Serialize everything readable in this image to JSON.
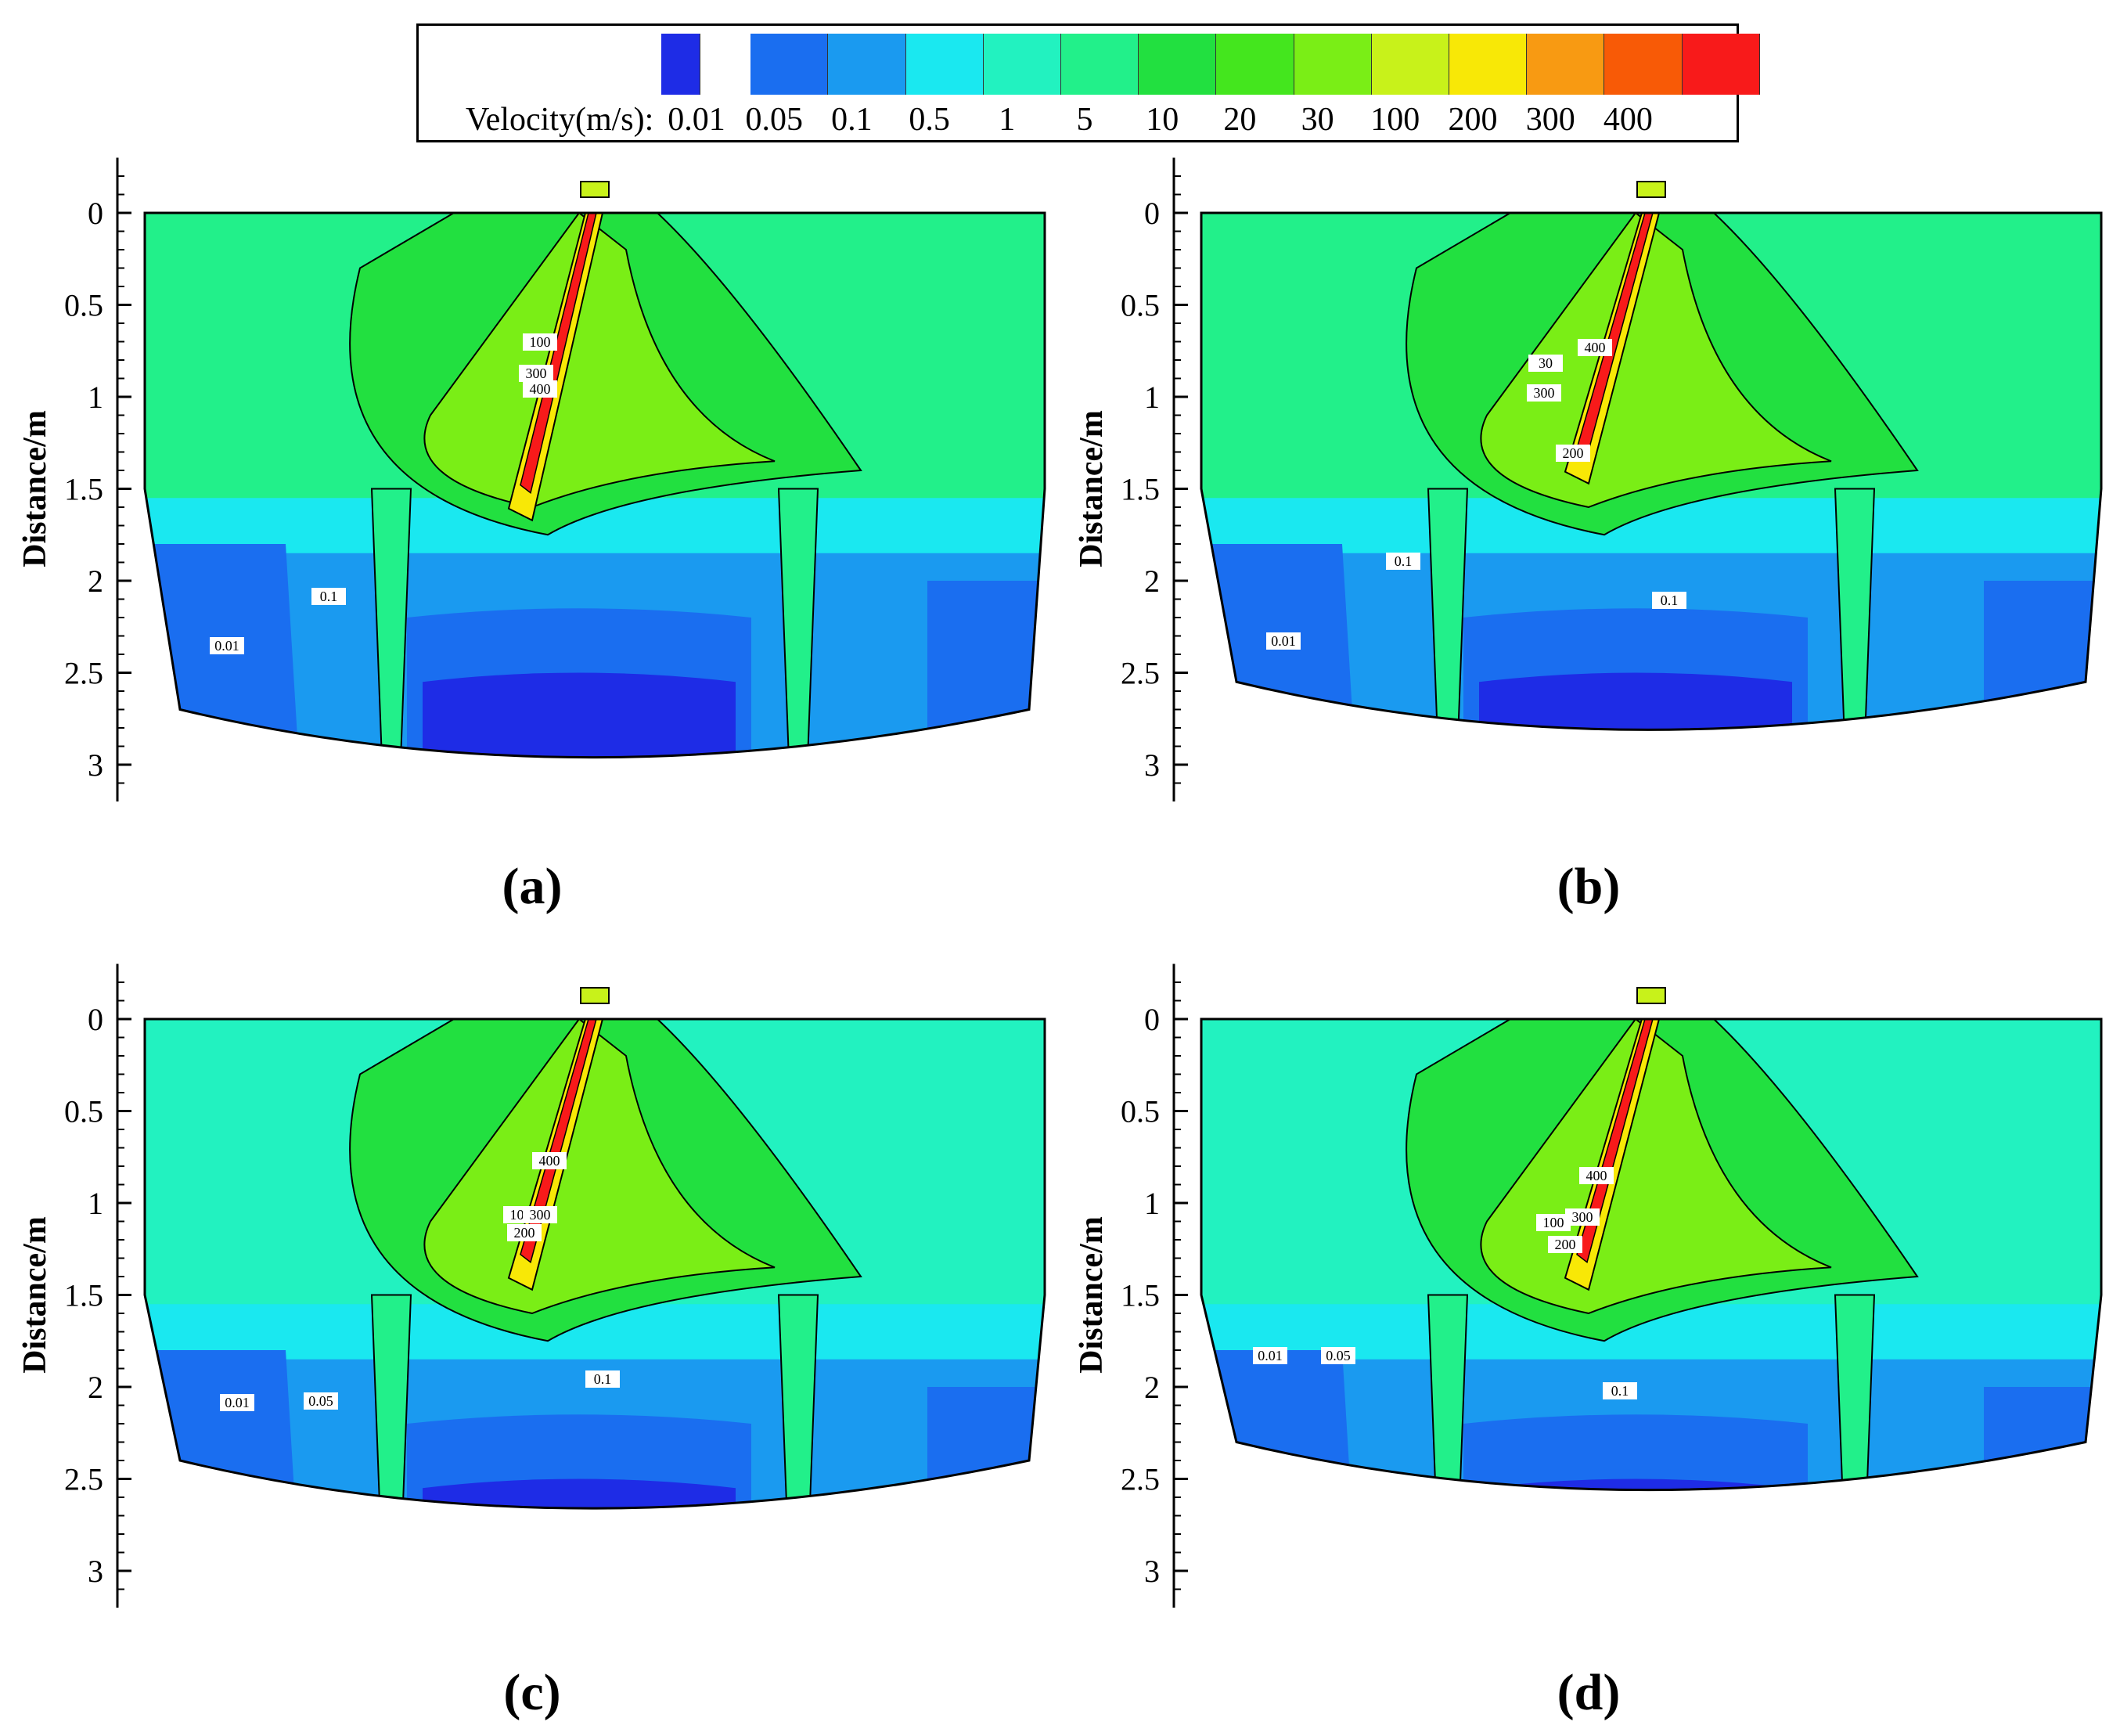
{
  "legend": {
    "title": "Velocity(m/s):",
    "levels": [
      "0.01",
      "0.05",
      "0.1",
      "0.5",
      "1",
      "5",
      "10",
      "20",
      "30",
      "100",
      "200",
      "300",
      "400"
    ],
    "colors": [
      "#1e2ce6",
      "#1a6ef0",
      "#1a9af0",
      "#1ae8f0",
      "#22f2c0",
      "#22f08a",
      "#22e040",
      "#44e61e",
      "#7aee16",
      "#c8f21a",
      "#f8e806",
      "#f89a12",
      "#f85a06",
      "#f81a1a"
    ]
  },
  "chart_data": [
    {
      "type": "heatmap",
      "panel": "(a)",
      "ylabel": "Distance/m",
      "yticks": [
        "0",
        "0.5",
        "1",
        "1.5",
        "2",
        "2.5",
        "3"
      ],
      "ylim": [
        0,
        3.2
      ],
      "contour_labels": [
        "100",
        "300",
        "400",
        "0.1",
        "0.01"
      ],
      "bottom_depth": 3.05
    },
    {
      "type": "heatmap",
      "panel": "(b)",
      "ylabel": "Distance/m",
      "yticks": [
        "0",
        "0.5",
        "1",
        "1.5",
        "2",
        "2.5",
        "3"
      ],
      "ylim": [
        0,
        3.2
      ],
      "contour_labels": [
        "30",
        "300",
        "400",
        "200",
        "0.1",
        "0.1",
        "0.01"
      ],
      "bottom_depth": 2.9
    },
    {
      "type": "heatmap",
      "panel": "(c)",
      "ylabel": "Distance/m",
      "yticks": [
        "0",
        "0.5",
        "1",
        "1.5",
        "2",
        "2.5",
        "3"
      ],
      "ylim": [
        0,
        3.2
      ],
      "contour_labels": [
        "400",
        "100",
        "200",
        "300",
        "0.1",
        "0.01",
        "0.05"
      ],
      "bottom_depth": 2.75
    },
    {
      "type": "heatmap",
      "panel": "(d)",
      "ylabel": "Distance/m",
      "yticks": [
        "0",
        "0.5",
        "1",
        "1.5",
        "2",
        "2.5",
        "3"
      ],
      "ylim": [
        0,
        3.2
      ],
      "contour_labels": [
        "100",
        "200",
        "300",
        "400",
        "0.01",
        "0.05",
        "0.1"
      ],
      "bottom_depth": 2.65
    }
  ]
}
